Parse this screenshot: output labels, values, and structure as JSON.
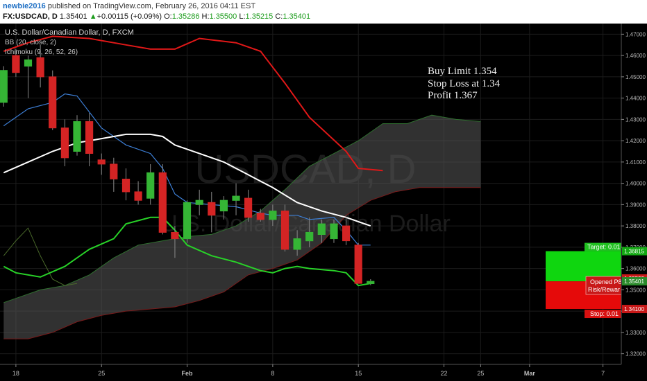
{
  "header": {
    "user": "newbie2016",
    "published_text": "published on TradingView.com, February 26, 2016 04:11 EST",
    "symbol": "FX:USDCAD, D",
    "last": "1.35401",
    "change_arrow": "▲",
    "change": "+0.00115 (+0.09%)",
    "o_label": "O:",
    "o_val": "1.35286",
    "h_label": "H:",
    "h_val": "1.35500",
    "l_label": "L:",
    "l_val": "1.35215",
    "c_label": "C:",
    "c_val": "1.35401"
  },
  "legend": {
    "title": "U.S. Dollar/Canadian Dollar, D, FXCM",
    "bb": "BB (20, close, 2)",
    "ichimoku": "Ichimoku (9, 26, 52, 26)"
  },
  "watermark": {
    "symbol": "USDCAD, D",
    "name": "U.S. Dollar/Canadian Dollar"
  },
  "annotation": [
    "Buy Limit 1.354",
    "Stop Loss at 1.34",
    "Profit 1.367"
  ],
  "position": {
    "target_label": "Target: 0.01",
    "stop_label": "Stop: 0.01",
    "opened_label": "Opened P8",
    "risk_label": "Risk/Rewar",
    "target_price": 1.36815,
    "entry_price": 1.354,
    "stop_price": 1.341
  },
  "colors": {
    "bg": "#000000",
    "grid": "#1c1c1c",
    "up": "#35b535",
    "down": "#d42424",
    "bb_upper": "#e01818",
    "bb_basis": "#ffffff",
    "tenkan": "#3d7fd6",
    "kijun": "#28d228",
    "cloud": "#5a5a5a",
    "target": "#0fd60f",
    "stop": "#e50a0a"
  },
  "chart_data": {
    "type": "candlestick",
    "ylim": [
      1.315,
      1.475
    ],
    "y_ticks": [
      "1.47000",
      "1.46000",
      "1.45000",
      "1.44000",
      "1.43000",
      "1.42000",
      "1.41000",
      "1.40000",
      "1.39000",
      "1.38000",
      "1.37000",
      "1.36000",
      "1.35000",
      "1.34000",
      "1.33000",
      "1.32000"
    ],
    "right_price_labels": [
      "1.36815",
      "1.35533",
      "1.35401",
      "1.34100"
    ],
    "x_ticks": [
      {
        "day": 0,
        "label": "18"
      },
      {
        "day": 7,
        "label": "25"
      },
      {
        "day": 14,
        "label": "Feb"
      },
      {
        "day": 21,
        "label": "8"
      },
      {
        "day": 28,
        "label": "15"
      },
      {
        "day": 35,
        "label": "22"
      },
      {
        "day": 38,
        "label": "25"
      },
      {
        "day": 42,
        "label": "Mar"
      },
      {
        "day": 48,
        "label": "7"
      }
    ],
    "day_range": [
      -1.3,
      49.5
    ],
    "candles": [
      {
        "d": -1,
        "o": 1.438,
        "h": 1.455,
        "l": 1.436,
        "c": 1.453
      },
      {
        "d": 0,
        "o": 1.46,
        "h": 1.463,
        "l": 1.45,
        "c": 1.452
      },
      {
        "d": 1,
        "o": 1.455,
        "h": 1.46,
        "l": 1.44,
        "c": 1.458
      },
      {
        "d": 2,
        "o": 1.459,
        "h": 1.465,
        "l": 1.445,
        "c": 1.45
      },
      {
        "d": 3,
        "o": 1.45,
        "h": 1.453,
        "l": 1.425,
        "c": 1.426
      },
      {
        "d": 4,
        "o": 1.426,
        "h": 1.43,
        "l": 1.408,
        "c": 1.412
      },
      {
        "d": 5,
        "o": 1.415,
        "h": 1.432,
        "l": 1.413,
        "c": 1.429
      },
      {
        "d": 6,
        "o": 1.429,
        "h": 1.433,
        "l": 1.408,
        "c": 1.414
      },
      {
        "d": 7,
        "o": 1.411,
        "h": 1.414,
        "l": 1.404,
        "c": 1.409
      },
      {
        "d": 8,
        "o": 1.409,
        "h": 1.412,
        "l": 1.396,
        "c": 1.402
      },
      {
        "d": 9,
        "o": 1.402,
        "h": 1.407,
        "l": 1.392,
        "c": 1.396
      },
      {
        "d": 10,
        "o": 1.396,
        "h": 1.401,
        "l": 1.39,
        "c": 1.392
      },
      {
        "d": 11,
        "o": 1.393,
        "h": 1.409,
        "l": 1.39,
        "c": 1.405
      },
      {
        "d": 12,
        "o": 1.405,
        "h": 1.409,
        "l": 1.376,
        "c": 1.377
      },
      {
        "d": 13,
        "o": 1.377,
        "h": 1.38,
        "l": 1.365,
        "c": 1.374
      },
      {
        "d": 14,
        "o": 1.374,
        "h": 1.392,
        "l": 1.372,
        "c": 1.391
      },
      {
        "d": 15,
        "o": 1.39,
        "h": 1.397,
        "l": 1.385,
        "c": 1.392
      },
      {
        "d": 16,
        "o": 1.391,
        "h": 1.396,
        "l": 1.377,
        "c": 1.385
      },
      {
        "d": 17,
        "o": 1.387,
        "h": 1.394,
        "l": 1.383,
        "c": 1.392
      },
      {
        "d": 18,
        "o": 1.392,
        "h": 1.4,
        "l": 1.385,
        "c": 1.394
      },
      {
        "d": 19,
        "o": 1.393,
        "h": 1.397,
        "l": 1.382,
        "c": 1.384
      },
      {
        "d": 20,
        "o": 1.386,
        "h": 1.388,
        "l": 1.382,
        "c": 1.383
      },
      {
        "d": 21,
        "o": 1.383,
        "h": 1.39,
        "l": 1.38,
        "c": 1.387
      },
      {
        "d": 22,
        "o": 1.387,
        "h": 1.39,
        "l": 1.368,
        "c": 1.369
      },
      {
        "d": 23,
        "o": 1.369,
        "h": 1.378,
        "l": 1.366,
        "c": 1.374
      },
      {
        "d": 24,
        "o": 1.373,
        "h": 1.384,
        "l": 1.37,
        "c": 1.377
      },
      {
        "d": 25,
        "o": 1.376,
        "h": 1.383,
        "l": 1.372,
        "c": 1.381
      },
      {
        "d": 26,
        "o": 1.374,
        "h": 1.383,
        "l": 1.372,
        "c": 1.381
      },
      {
        "d": 27,
        "o": 1.38,
        "h": 1.385,
        "l": 1.371,
        "c": 1.373
      },
      {
        "d": 28,
        "o": 1.371,
        "h": 1.372,
        "l": 1.353,
        "c": 1.353
      },
      {
        "d": 29,
        "o": 1.3529,
        "h": 1.355,
        "l": 1.3522,
        "c": 1.354
      }
    ],
    "bb_upper": [
      [
        -1,
        1.462
      ],
      [
        1,
        1.466
      ],
      [
        3,
        1.469
      ],
      [
        6,
        1.468
      ],
      [
        9,
        1.465
      ],
      [
        11,
        1.463
      ],
      [
        13,
        1.463
      ],
      [
        15,
        1.468
      ],
      [
        18,
        1.466
      ],
      [
        20,
        1.462
      ],
      [
        22,
        1.447
      ],
      [
        24,
        1.431
      ],
      [
        27,
        1.415
      ],
      [
        28,
        1.407
      ],
      [
        30,
        1.406
      ]
    ],
    "bb_basis": [
      [
        -1,
        1.405
      ],
      [
        1,
        1.41
      ],
      [
        3,
        1.415
      ],
      [
        5,
        1.419
      ],
      [
        7,
        1.421
      ],
      [
        9,
        1.423
      ],
      [
        11,
        1.423
      ],
      [
        12,
        1.422
      ],
      [
        13,
        1.418
      ],
      [
        15,
        1.414
      ],
      [
        17,
        1.41
      ],
      [
        19,
        1.404
      ],
      [
        21,
        1.398
      ],
      [
        23,
        1.391
      ],
      [
        25,
        1.387
      ],
      [
        27,
        1.384
      ],
      [
        28,
        1.382
      ],
      [
        29,
        1.38
      ]
    ],
    "tenkan": [
      [
        -1,
        1.427
      ],
      [
        1,
        1.435
      ],
      [
        3,
        1.438
      ],
      [
        4,
        1.442
      ],
      [
        5,
        1.441
      ],
      [
        7,
        1.426
      ],
      [
        9,
        1.418
      ],
      [
        11,
        1.414
      ],
      [
        12,
        1.407
      ],
      [
        13,
        1.395
      ],
      [
        14,
        1.391
      ],
      [
        16,
        1.39
      ],
      [
        18,
        1.389
      ],
      [
        20,
        1.386
      ],
      [
        21,
        1.385
      ],
      [
        22,
        1.385
      ],
      [
        23,
        1.385
      ],
      [
        24,
        1.383
      ],
      [
        26,
        1.384
      ],
      [
        27,
        1.378
      ],
      [
        28,
        1.371
      ],
      [
        29,
        1.371
      ]
    ],
    "kijun": [
      [
        -1,
        1.361
      ],
      [
        0,
        1.358
      ],
      [
        2,
        1.356
      ],
      [
        4,
        1.361
      ],
      [
        6,
        1.369
      ],
      [
        8,
        1.374
      ],
      [
        9,
        1.381
      ],
      [
        11,
        1.384
      ],
      [
        12,
        1.384
      ],
      [
        13,
        1.378
      ],
      [
        14,
        1.371
      ],
      [
        16,
        1.366
      ],
      [
        18,
        1.363
      ],
      [
        19,
        1.361
      ],
      [
        20,
        1.359
      ],
      [
        21,
        1.358
      ],
      [
        22,
        1.36
      ],
      [
        23,
        1.361
      ],
      [
        24,
        1.36
      ],
      [
        26,
        1.359
      ],
      [
        27,
        1.358
      ],
      [
        28,
        1.352
      ],
      [
        29,
        1.353
      ]
    ],
    "chikou": [
      [
        -1,
        1.366
      ],
      [
        0,
        1.373
      ],
      [
        1,
        1.379
      ],
      [
        2,
        1.366
      ],
      [
        3,
        1.355
      ],
      [
        4,
        1.352
      ],
      [
        5,
        1.353
      ]
    ],
    "senkou_a": [
      [
        -1,
        1.344
      ],
      [
        0,
        1.346
      ],
      [
        2,
        1.35
      ],
      [
        4,
        1.352
      ],
      [
        6,
        1.357
      ],
      [
        8,
        1.365
      ],
      [
        10,
        1.371
      ],
      [
        12,
        1.373
      ],
      [
        14,
        1.375
      ],
      [
        16,
        1.376
      ],
      [
        18,
        1.38
      ],
      [
        20,
        1.387
      ],
      [
        22,
        1.397
      ],
      [
        24,
        1.408
      ],
      [
        26,
        1.414
      ],
      [
        28,
        1.42
      ],
      [
        30,
        1.428
      ],
      [
        32,
        1.428
      ],
      [
        34,
        1.432
      ],
      [
        36,
        1.43
      ],
      [
        38,
        1.429
      ]
    ],
    "senkou_b": [
      [
        -1,
        1.327
      ],
      [
        1,
        1.327
      ],
      [
        3,
        1.33
      ],
      [
        5,
        1.335
      ],
      [
        7,
        1.338
      ],
      [
        9,
        1.34
      ],
      [
        11,
        1.341
      ],
      [
        13,
        1.342
      ],
      [
        15,
        1.345
      ],
      [
        17,
        1.349
      ],
      [
        19,
        1.357
      ],
      [
        21,
        1.36
      ],
      [
        23,
        1.364
      ],
      [
        25,
        1.372
      ],
      [
        27,
        1.385
      ],
      [
        29,
        1.392
      ],
      [
        31,
        1.396
      ],
      [
        33,
        1.398
      ],
      [
        35,
        1.398
      ],
      [
        38,
        1.398
      ]
    ]
  }
}
